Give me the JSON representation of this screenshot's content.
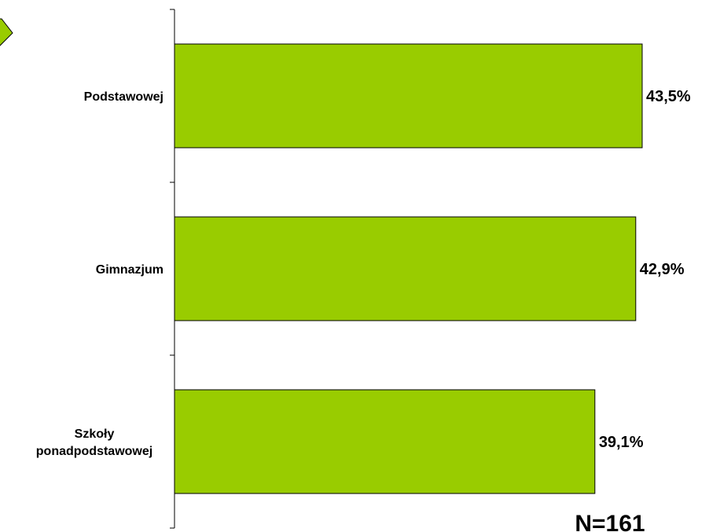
{
  "chart_data": {
    "type": "bar",
    "orientation": "horizontal",
    "categories": [
      "Podstawowej",
      "Gimnazjum",
      "Szkoły\nponadpodstawowej"
    ],
    "values": [
      43.5,
      42.9,
      39.1
    ],
    "value_labels": [
      "43,5%",
      "42,9%",
      "39,1%"
    ],
    "note": "N=161",
    "colors": {
      "bar_fill": "#99CC00",
      "bar_stroke": "#000000",
      "axis": "#000000",
      "marker_fill": "#99CC00"
    },
    "grid": false,
    "legend": "none"
  }
}
